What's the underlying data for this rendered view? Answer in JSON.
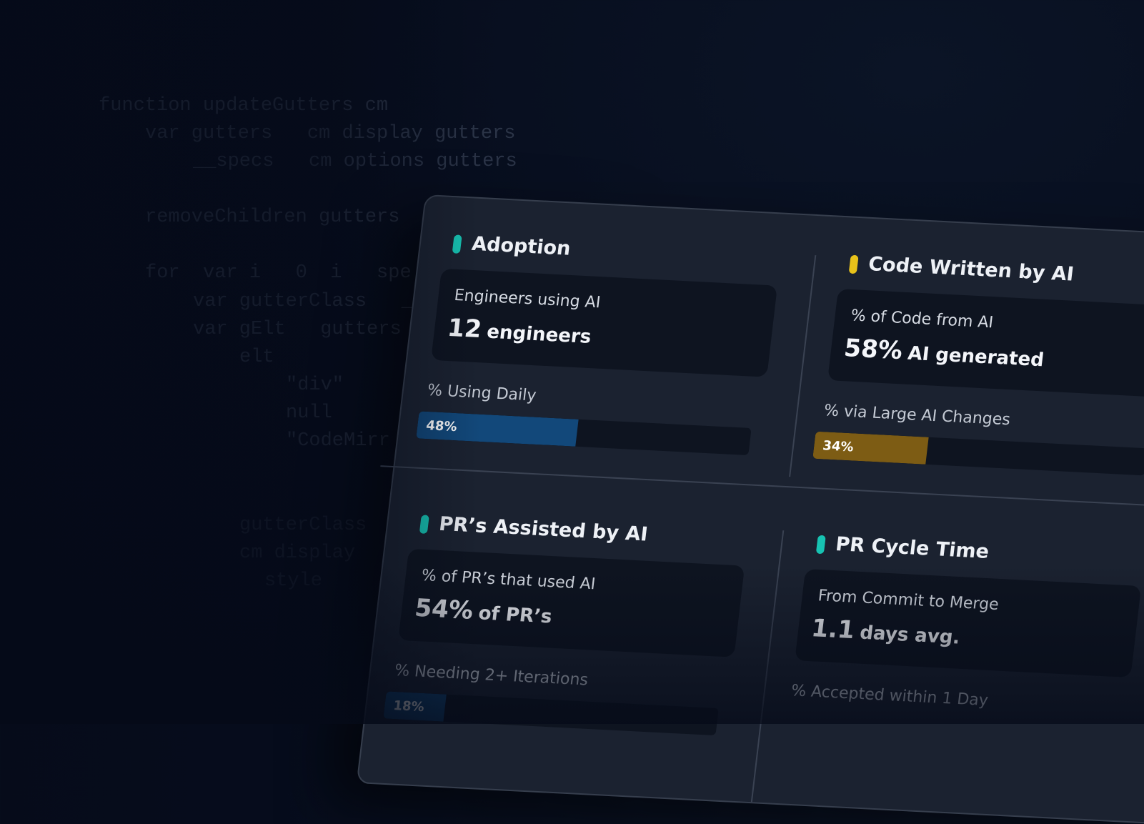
{
  "code_lines": [
    "function updateGutters cm",
    "var gutters   cm display gutters",
    "__specs   cm options gutters",
    "removeChildren gutters",
    "for  var i   0  i   spe",
    "var gutterClass   _",
    "var gElt   gutters",
    "elt",
    "\"div\"",
    "null",
    "\"CodeMirr",
    "gutterClass",
    "cm display",
    "style"
  ],
  "cards": [
    {
      "title": "Adoption",
      "accent": "#17c3b2",
      "metric_label": "Engineers using AI",
      "metric_value": "12",
      "metric_unit": "engineers",
      "progress_label": "% Using Daily",
      "progress": {
        "value": 48,
        "label": "48%"
      },
      "bar_color": "#12487a"
    },
    {
      "title": "Code Written by AI",
      "accent": "#e8c21a",
      "metric_label": "% of Code from AI",
      "metric_value": "58%",
      "metric_unit": "AI generated",
      "progress_label": "% via Large AI Changes",
      "progress": {
        "value": 34,
        "label": "34%"
      },
      "bar_color": "#7d5c14"
    },
    {
      "title": "PR’s Assisted by AI",
      "accent": "#17c3b2",
      "metric_label": "% of PR’s that used AI",
      "metric_value": "54%",
      "metric_unit": "of PR’s",
      "progress_label": "% Needing 2+ Iterations",
      "progress": {
        "value": 18,
        "label": "18%"
      },
      "bar_color": "#12487a"
    },
    {
      "title": "PR Cycle Time",
      "accent": "#17c3b2",
      "metric_label": "From Commit to Merge",
      "metric_value": "1.1",
      "metric_unit": "days avg.",
      "progress_label": "% Accepted within 1 Day"
    }
  ]
}
